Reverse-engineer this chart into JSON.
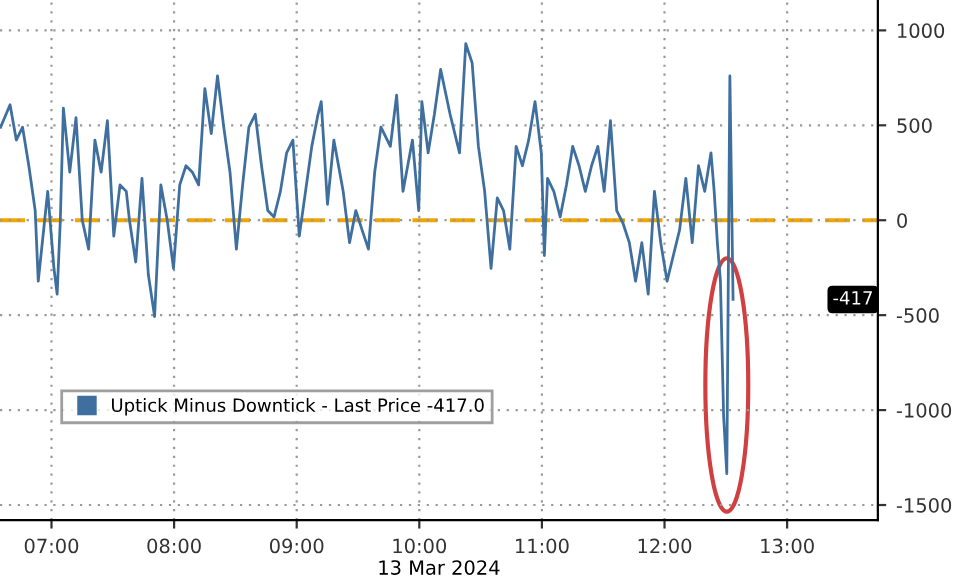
{
  "chart_data": {
    "type": "line",
    "xlabel": "13 Mar 2024",
    "x": [
      6.585,
      6.662,
      6.713,
      6.764,
      6.815,
      6.867,
      6.892,
      6.969,
      7.02,
      7.046,
      7.072,
      7.097,
      7.149,
      7.2,
      7.251,
      7.303,
      7.354,
      7.405,
      7.456,
      7.508,
      7.559,
      7.61,
      7.636,
      7.687,
      7.738,
      7.79,
      7.841,
      7.892,
      7.944,
      7.995,
      8.046,
      8.097,
      8.149,
      8.2,
      8.251,
      8.303,
      8.354,
      8.405,
      8.456,
      8.508,
      8.559,
      8.61,
      8.662,
      8.713,
      8.764,
      8.815,
      8.867,
      8.918,
      8.969,
      9.021,
      9.072,
      9.123,
      9.174,
      9.2,
      9.251,
      9.303,
      9.379,
      9.431,
      9.482,
      9.533,
      9.585,
      9.636,
      9.687,
      9.764,
      9.815,
      9.867,
      9.944,
      9.995,
      10.021,
      10.072,
      10.123,
      10.174,
      10.251,
      10.328,
      10.379,
      10.431,
      10.482,
      10.533,
      10.585,
      10.636,
      10.687,
      10.738,
      10.79,
      10.841,
      10.892,
      10.944,
      10.995,
      11.02,
      11.046,
      11.097,
      11.149,
      11.2,
      11.251,
      11.303,
      11.354,
      11.405,
      11.456,
      11.508,
      11.559,
      11.61,
      11.662,
      11.713,
      11.764,
      11.815,
      11.867,
      11.918,
      11.969,
      12.021,
      12.072,
      12.123,
      12.174,
      12.226,
      12.277,
      12.328,
      12.379,
      12.405,
      12.431,
      12.456,
      12.482,
      12.508,
      12.533,
      12.559
    ],
    "series": [
      {
        "name": "Uptick Minus Downtick - Last Price -417.0",
        "color": "#3f6f9f",
        "values": [
          490,
          608,
          422,
          490,
          287,
          51,
          -321,
          152,
          -253,
          -389,
          0,
          591,
          253,
          540,
          0,
          -152,
          422,
          253,
          524,
          -84,
          186,
          152,
          0,
          -220,
          220,
          -287,
          -507,
          186,
          0,
          -253,
          186,
          287,
          253,
          186,
          693,
          456,
          760,
          490,
          253,
          -152,
          186,
          490,
          558,
          287,
          51,
          17,
          152,
          355,
          422,
          -84,
          152,
          389,
          558,
          625,
          84,
          422,
          152,
          -118,
          51,
          -51,
          -152,
          253,
          490,
          389,
          659,
          152,
          422,
          51,
          625,
          355,
          558,
          794,
          558,
          355,
          930,
          828,
          389,
          152,
          -253,
          118,
          51,
          -152,
          389,
          287,
          422,
          625,
          355,
          -186,
          220,
          152,
          17,
          186,
          389,
          287,
          152,
          287,
          389,
          152,
          524,
          51,
          -17,
          -118,
          -321,
          -118,
          -389,
          152,
          -118,
          -321,
          -186,
          -51,
          220,
          -118,
          287,
          152,
          355,
          152,
          -118,
          -321,
          -1031,
          -1335,
          760,
          -417
        ]
      }
    ],
    "xlim": [
      6.58,
      13.74
    ],
    "ylim": [
      -1580,
      1160
    ],
    "xticks": [
      {
        "value": 7,
        "label": "07:00"
      },
      {
        "value": 8,
        "label": "08:00"
      },
      {
        "value": 9,
        "label": "09:00"
      },
      {
        "value": 10,
        "label": "10:00"
      },
      {
        "value": 11,
        "label": "11:00"
      },
      {
        "value": 12,
        "label": "12:00"
      },
      {
        "value": 13,
        "label": "13:00"
      }
    ],
    "yticks": [
      1000,
      500,
      0,
      -500,
      -1000,
      -1500
    ],
    "ref_lines": [
      {
        "axis": "y",
        "value": 0,
        "color": "#f0a500",
        "line_style": "dashed"
      }
    ],
    "annotations": [
      "-417"
    ],
    "grid": true,
    "legend": "lower left"
  }
}
